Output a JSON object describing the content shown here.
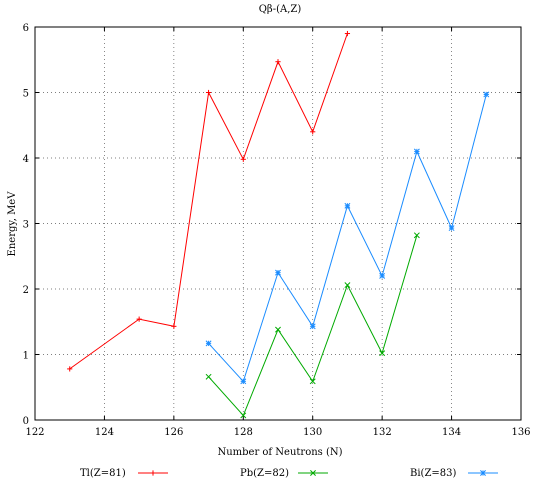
{
  "chart_data": {
    "type": "line",
    "title": "Qβ-(A,Z)",
    "xlabel": "Number of Neutrons (N)",
    "ylabel": "Energy, MeV",
    "xlim": [
      122,
      136
    ],
    "ylim": [
      0,
      6
    ],
    "xticks": [
      "122",
      "124",
      "126",
      "128",
      "130",
      "132",
      "134",
      "136"
    ],
    "yticks": [
      "0",
      "1",
      "2",
      "3",
      "4",
      "5",
      "6"
    ],
    "grid": true,
    "legend_position": "bottom",
    "series": [
      {
        "name": "Tl(Z=81)",
        "color": "#ff0000",
        "marker": "plus",
        "x": [
          123,
          125,
          126,
          127,
          128,
          129,
          130,
          131
        ],
        "y": [
          0.78,
          1.54,
          1.43,
          5.0,
          3.98,
          5.47,
          4.4,
          5.9
        ]
      },
      {
        "name": "Pb(Z=82)",
        "color": "#00aa00",
        "marker": "x",
        "x": [
          127,
          128,
          129,
          130,
          131,
          132,
          133
        ],
        "y": [
          0.66,
          0.07,
          1.38,
          0.59,
          2.06,
          1.02,
          2.82
        ]
      },
      {
        "name": "Bi(Z=83)",
        "color": "#1a8cff",
        "marker": "star",
        "x": [
          127,
          128,
          129,
          130,
          131,
          132,
          133,
          134,
          135
        ],
        "y": [
          1.17,
          0.59,
          2.25,
          1.43,
          3.27,
          2.2,
          4.1,
          2.93,
          4.97
        ]
      }
    ]
  }
}
